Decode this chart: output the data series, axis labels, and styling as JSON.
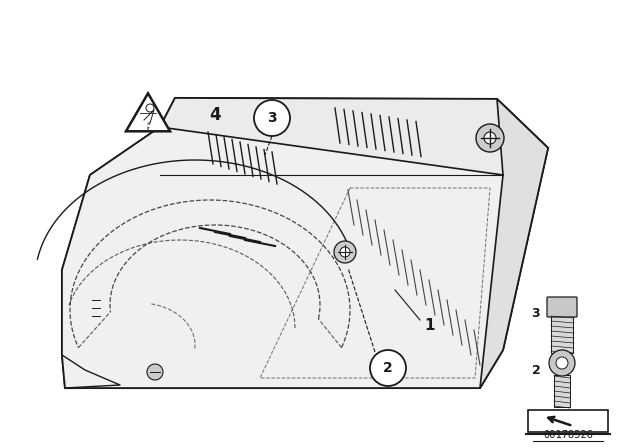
{
  "bg_color": "#ffffff",
  "fig_width": 6.4,
  "fig_height": 4.48,
  "dpi": 100,
  "part_number": "00178526",
  "line_color": "#1a1a1a",
  "text_color": "#1a1a1a",
  "face_color_top": "#f2f2f2",
  "face_color_front": "#e8e8e8",
  "face_color_right": "#dedede",
  "face_color_inner": "#f5f5f5"
}
